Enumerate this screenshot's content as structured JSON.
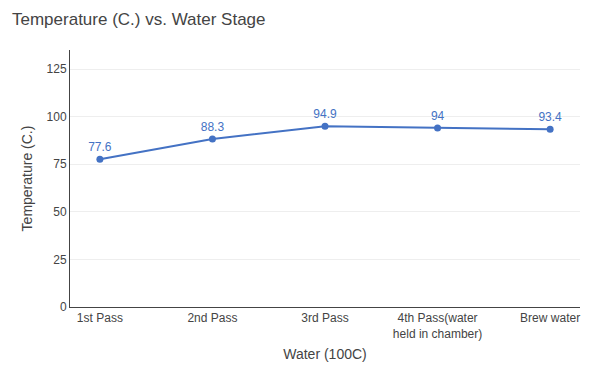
{
  "chart_data": {
    "type": "line",
    "title": "Temperature (C.) vs. Water Stage",
    "xlabel": "Water (100C)",
    "ylabel": "Temperature (C.)",
    "categories": [
      "1st Pass",
      "2nd Pass",
      "3rd Pass",
      "4th Pass(water\nheld in chamber)",
      "Brew water"
    ],
    "values": [
      77.6,
      88.3,
      94.9,
      94,
      93.4
    ],
    "color": "#4472C4",
    "marker": "circle",
    "ylim": [
      0,
      135
    ],
    "yticks": [
      0,
      25,
      50,
      75,
      100,
      125
    ],
    "grid": true,
    "data_labels": true
  }
}
